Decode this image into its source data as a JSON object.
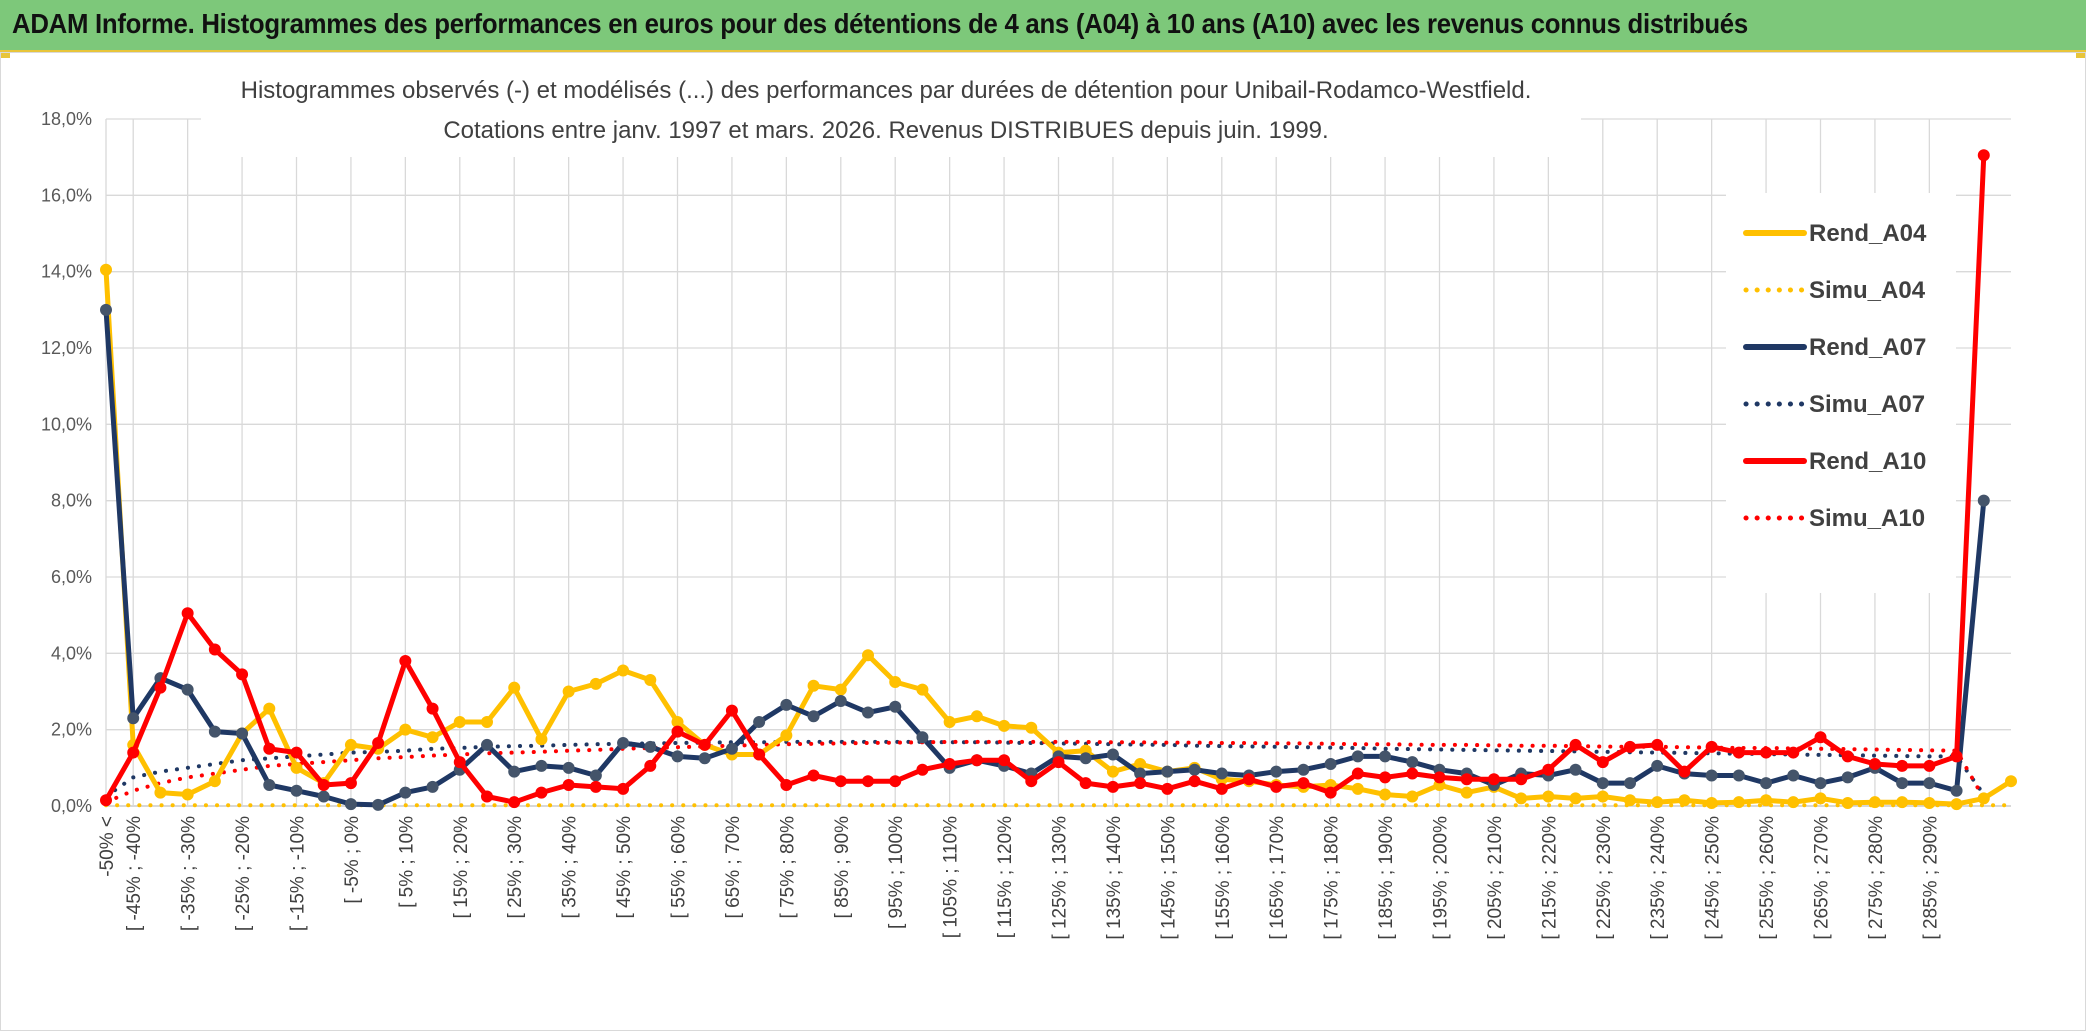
{
  "header": {
    "title": "ADAM Informe. Histogrammes des performances en euros pour des détentions de 4 ans (A04) à 10 ans (A10) avec les revenus connus distribués"
  },
  "chart_data": {
    "type": "line",
    "title": [
      "Histogrammes observés (-) et modélisés (...) des performances par durées de détention pour Unibail-Rodamco-Westfield.",
      "Cotations entre janv. 1997 et mars. 2026. Revenus DISTRIBUES depuis juin. 1999."
    ],
    "ylim": [
      0,
      18
    ],
    "yticks": [
      "0,0%",
      "2,0%",
      "4,0%",
      "6,0%",
      "8,0%",
      "10,0%",
      "12,0%",
      "14,0%",
      "16,0%",
      "18,0%"
    ],
    "grid": true,
    "legend_position": "right",
    "xtick_labels": [
      "-50% <",
      "[ -45% ; -40%",
      "[ -35% ; -30%",
      "[ -25% ; -20%",
      "[ -15% ; -10%",
      "[ -5% ; 0%",
      "[ 5% ; 10%",
      "[ 15% ; 20%",
      "[ 25% ; 30%",
      "[ 35% ; 40%",
      "[ 45% ; 50%",
      "[ 55% ; 60%",
      "[ 65% ; 70%",
      "[ 75% ; 80%",
      "[ 85% ; 90%",
      "[ 95% ; 100%",
      "[ 105% ; 110%",
      "[ 115% ; 120%",
      "[ 125% ; 130%",
      "[ 135% ; 140%",
      "[ 145% ; 150%",
      "[ 155% ; 160%",
      "[ 165% ; 170%",
      "[ 175% ; 180%",
      "[ 185% ; 190%",
      "[ 195% ; 200%",
      "[ 205% ; 210%",
      "[ 215% ; 220%",
      "[ 225% ; 230%",
      "[ 235% ; 240%",
      "[ 245% ; 250%",
      "[ 255% ; 260%",
      "[ 265% ; 270%",
      "[ 275% ; 280%",
      "[ 285% ; 290%"
    ],
    "series": [
      {
        "name": "Rend_A04",
        "color": "#ffc000",
        "style": "solid",
        "values": [
          14.05,
          1.6,
          0.35,
          0.3,
          0.65,
          1.9,
          2.55,
          1.0,
          0.6,
          1.6,
          1.5,
          2.0,
          1.8,
          2.2,
          2.2,
          3.1,
          1.75,
          3.0,
          3.2,
          3.55,
          3.3,
          2.2,
          1.6,
          1.35,
          1.35,
          1.85,
          3.15,
          3.05,
          3.95,
          3.25,
          3.05,
          2.2,
          2.35,
          2.1,
          2.05,
          1.4,
          1.45,
          0.9,
          1.1,
          0.9,
          1.0,
          0.7,
          0.65,
          0.55,
          0.5,
          0.55,
          0.45,
          0.3,
          0.25,
          0.55,
          0.35,
          0.5,
          0.2,
          0.25,
          0.2,
          0.25,
          0.15,
          0.1,
          0.15,
          0.08,
          0.1,
          0.15,
          0.1,
          0.2,
          0.08,
          0.1,
          0.1,
          0.08,
          0.05,
          0.2,
          0.65
        ]
      },
      {
        "name": "Simu_A04",
        "color": "#ffc000",
        "style": "dotted",
        "values": [
          0.02,
          0.02,
          0.02,
          0.02,
          0.02,
          0.02,
          0.02,
          0.02,
          0.02,
          0.02,
          0.02,
          0.02,
          0.02,
          0.02,
          0.02,
          0.02,
          0.02,
          0.02,
          0.02,
          0.02,
          0.02,
          0.02,
          0.02,
          0.02,
          0.02,
          0.02,
          0.02,
          0.02,
          0.02,
          0.02,
          0.02,
          0.02,
          0.02,
          0.02,
          0.02,
          0.02,
          0.02,
          0.02,
          0.02,
          0.02,
          0.02,
          0.02,
          0.02,
          0.02,
          0.02,
          0.02,
          0.02,
          0.02,
          0.02,
          0.02,
          0.02,
          0.02,
          0.02,
          0.02,
          0.02,
          0.02,
          0.02,
          0.02,
          0.02,
          0.02,
          0.02,
          0.02,
          0.02,
          0.02,
          0.02,
          0.02,
          0.02,
          0.02,
          0.02,
          0.02,
          0.02
        ]
      },
      {
        "name": "Rend_A07",
        "color": "#1f3864",
        "style": "solid",
        "values": [
          13.0,
          2.3,
          3.35,
          3.05,
          1.95,
          1.9,
          0.55,
          0.4,
          0.25,
          0.05,
          0.03,
          0.35,
          0.5,
          0.95,
          1.6,
          0.9,
          1.05,
          1.0,
          0.8,
          1.65,
          1.55,
          1.3,
          1.25,
          1.5,
          2.2,
          2.65,
          2.35,
          2.75,
          2.45,
          2.6,
          1.8,
          1.0,
          1.2,
          1.05,
          0.85,
          1.3,
          1.25,
          1.35,
          0.85,
          0.9,
          0.95,
          0.85,
          0.8,
          0.9,
          0.95,
          1.1,
          1.3,
          1.3,
          1.15,
          0.95,
          0.85,
          0.55,
          0.85,
          0.8,
          0.95,
          0.6,
          0.6,
          1.05,
          0.85,
          0.8,
          0.8,
          0.6,
          0.8,
          0.6,
          0.75,
          1.0,
          0.6,
          0.6,
          0.4,
          8.0
        ]
      },
      {
        "name": "Simu_A07",
        "color": "#1f3864",
        "style": "dotted",
        "values": [
          0.25,
          0.75,
          0.9,
          1.0,
          1.1,
          1.2,
          1.25,
          1.3,
          1.35,
          1.4,
          1.42,
          1.45,
          1.5,
          1.52,
          1.55,
          1.57,
          1.58,
          1.6,
          1.62,
          1.63,
          1.64,
          1.65,
          1.66,
          1.67,
          1.67,
          1.68,
          1.68,
          1.68,
          1.68,
          1.68,
          1.68,
          1.67,
          1.67,
          1.66,
          1.65,
          1.64,
          1.63,
          1.62,
          1.61,
          1.6,
          1.58,
          1.57,
          1.56,
          1.55,
          1.54,
          1.53,
          1.52,
          1.5,
          1.49,
          1.48,
          1.47,
          1.46,
          1.45,
          1.44,
          1.43,
          1.42,
          1.41,
          1.4,
          1.39,
          1.38,
          1.37,
          1.36,
          1.35,
          1.34,
          1.33,
          1.32,
          1.31,
          1.3,
          1.3,
          0.3
        ]
      },
      {
        "name": "Rend_A10",
        "color": "#ff0000",
        "style": "solid",
        "values": [
          0.15,
          1.4,
          3.1,
          5.05,
          4.1,
          3.45,
          1.5,
          1.4,
          0.55,
          0.6,
          1.65,
          3.8,
          2.55,
          1.15,
          0.25,
          0.1,
          0.35,
          0.55,
          0.5,
          0.45,
          1.05,
          1.95,
          1.6,
          2.5,
          1.35,
          0.55,
          0.8,
          0.65,
          0.65,
          0.65,
          0.95,
          1.1,
          1.2,
          1.2,
          0.65,
          1.15,
          0.6,
          0.5,
          0.6,
          0.45,
          0.65,
          0.45,
          0.7,
          0.5,
          0.6,
          0.35,
          0.85,
          0.75,
          0.85,
          0.75,
          0.7,
          0.7,
          0.7,
          0.95,
          1.6,
          1.15,
          1.55,
          1.6,
          0.9,
          1.55,
          1.4,
          1.4,
          1.4,
          1.8,
          1.3,
          1.1,
          1.05,
          1.05,
          1.3,
          17.05
        ]
      },
      {
        "name": "Simu_A10",
        "color": "#ff0000",
        "style": "dotted",
        "values": [
          0.1,
          0.4,
          0.6,
          0.75,
          0.85,
          0.95,
          1.05,
          1.1,
          1.15,
          1.2,
          1.25,
          1.28,
          1.32,
          1.35,
          1.38,
          1.4,
          1.42,
          1.45,
          1.47,
          1.5,
          1.52,
          1.54,
          1.56,
          1.58,
          1.6,
          1.62,
          1.63,
          1.64,
          1.65,
          1.66,
          1.67,
          1.68,
          1.68,
          1.68,
          1.68,
          1.68,
          1.68,
          1.67,
          1.67,
          1.66,
          1.66,
          1.65,
          1.65,
          1.64,
          1.64,
          1.63,
          1.62,
          1.62,
          1.61,
          1.6,
          1.6,
          1.59,
          1.58,
          1.58,
          1.57,
          1.56,
          1.55,
          1.55,
          1.54,
          1.53,
          1.52,
          1.52,
          1.51,
          1.5,
          1.49,
          1.48,
          1.47,
          1.46,
          1.45,
          0.2
        ]
      }
    ]
  }
}
